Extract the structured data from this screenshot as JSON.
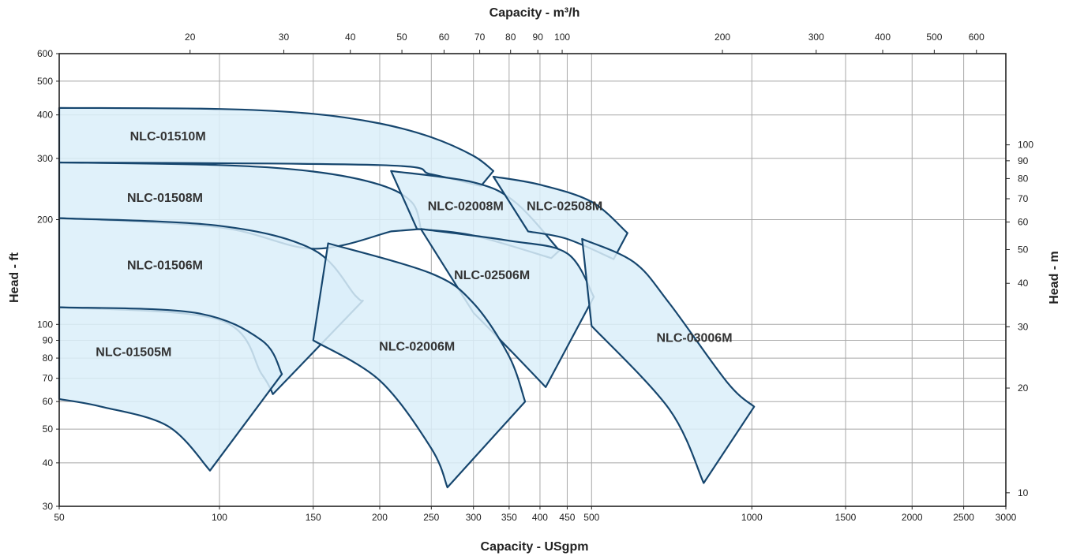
{
  "chart_data": {
    "type": "area",
    "x_scale": "log",
    "y_scale": "log",
    "grid": true,
    "xlabel_bottom": "Capacity - USgpm",
    "xlabel_top": "Capacity - m³/h",
    "ylabel_left": "Head - ft",
    "ylabel_right": "Head - m",
    "xlim": [
      50,
      3000
    ],
    "ylim": [
      30,
      600
    ],
    "x_ticks_bottom": [
      {
        "v": 50,
        "label": "50"
      },
      {
        "v": 100,
        "label": "100"
      },
      {
        "v": 150,
        "label": "150"
      },
      {
        "v": 200,
        "label": "200"
      },
      {
        "v": 250,
        "label": "250"
      },
      {
        "v": 300,
        "label": "300"
      },
      {
        "v": 350,
        "label": "350"
      },
      {
        "v": 400,
        "label": "400"
      },
      {
        "v": 450,
        "label": "450"
      },
      {
        "v": 500,
        "label": "500"
      },
      {
        "v": 1000,
        "label": "1000"
      },
      {
        "v": 1500,
        "label": "1500"
      },
      {
        "v": 2000,
        "label": "2000"
      },
      {
        "v": 2500,
        "label": "2500"
      },
      {
        "v": 3000,
        "label": "3000"
      }
    ],
    "x_ticks_top": [
      {
        "v": 20,
        "label": "20"
      },
      {
        "v": 30,
        "label": "30"
      },
      {
        "v": 40,
        "label": "40"
      },
      {
        "v": 50,
        "label": "50"
      },
      {
        "v": 60,
        "label": "60"
      },
      {
        "v": 70,
        "label": "70"
      },
      {
        "v": 80,
        "label": "80"
      },
      {
        "v": 90,
        "label": "90"
      },
      {
        "v": 100,
        "label": "100"
      },
      {
        "v": 200,
        "label": "200"
      },
      {
        "v": 300,
        "label": "300"
      },
      {
        "v": 400,
        "label": "400"
      },
      {
        "v": 500,
        "label": "500"
      },
      {
        "v": 600,
        "label": "600"
      }
    ],
    "y_ticks_left": [
      {
        "v": 30,
        "label": "30"
      },
      {
        "v": 40,
        "label": "40"
      },
      {
        "v": 50,
        "label": "50"
      },
      {
        "v": 60,
        "label": "60"
      },
      {
        "v": 70,
        "label": "70"
      },
      {
        "v": 80,
        "label": "80"
      },
      {
        "v": 90,
        "label": "90"
      },
      {
        "v": 100,
        "label": "100"
      },
      {
        "v": 200,
        "label": "200"
      },
      {
        "v": 300,
        "label": "300"
      },
      {
        "v": 400,
        "label": "400"
      },
      {
        "v": 500,
        "label": "500"
      },
      {
        "v": 600,
        "label": "600"
      }
    ],
    "y_ticks_right": [
      {
        "v": 10,
        "label": "10"
      },
      {
        "v": 20,
        "label": "20"
      },
      {
        "v": 30,
        "label": "30"
      },
      {
        "v": 40,
        "label": "40"
      },
      {
        "v": 50,
        "label": "50"
      },
      {
        "v": 60,
        "label": "60"
      },
      {
        "v": 70,
        "label": "70"
      },
      {
        "v": 80,
        "label": "80"
      },
      {
        "v": 90,
        "label": "90"
      },
      {
        "v": 100,
        "label": "100"
      }
    ],
    "colors": {
      "fill": "#daeef9",
      "stroke": "#16466e",
      "grid": "#a8a8a8",
      "frame": "#222222"
    },
    "regions": [
      {
        "name": "NLC-01510M",
        "label_at": [
          80,
          338
        ],
        "upper": [
          [
            50,
            419
          ],
          [
            100,
            416
          ],
          [
            150,
            403
          ],
          [
            200,
            378
          ],
          [
            250,
            345
          ],
          [
            300,
            305
          ],
          [
            327,
            276
          ]
        ],
        "lower": [
          [
            310,
            250
          ],
          [
            250,
            270
          ],
          [
            200,
            287
          ],
          [
            50,
            292
          ]
        ]
      },
      {
        "name": "NLC-01508M",
        "label_at": [
          79,
          225
        ],
        "upper": [
          [
            50,
            292
          ],
          [
            100,
            287
          ],
          [
            150,
            275
          ],
          [
            200,
            252
          ],
          [
            230,
            224
          ],
          [
            239,
            188
          ]
        ],
        "lower": [
          [
            210,
            185
          ],
          [
            150,
            165
          ],
          [
            100,
            190
          ],
          [
            50,
            202
          ]
        ]
      },
      {
        "name": "NLC-01506M",
        "label_at": [
          79,
          144
        ],
        "upper": [
          [
            50,
            202
          ],
          [
            100,
            192
          ],
          [
            150,
            164
          ],
          [
            180,
            121
          ],
          [
            186,
            117
          ]
        ],
        "lower": [
          [
            126,
            63
          ],
          [
            120,
            72
          ],
          [
            100,
            103
          ],
          [
            50,
            112
          ]
        ]
      },
      {
        "name": "NLC-01505M",
        "label_at": [
          69,
          81
        ],
        "upper": [
          [
            50,
            112
          ],
          [
            90,
            108
          ],
          [
            120,
            90
          ],
          [
            131,
            72
          ]
        ],
        "lower": [
          [
            96,
            38
          ],
          [
            80,
            51
          ],
          [
            60,
            58
          ],
          [
            50,
            61
          ]
        ]
      },
      {
        "name": "NLC-02008M",
        "label_at": [
          290,
          213
        ],
        "upper": [
          [
            210,
            276
          ],
          [
            300,
            256
          ],
          [
            360,
            224
          ],
          [
            435,
            163
          ]
        ],
        "lower": [
          [
            420,
            155
          ],
          [
            300,
            180
          ],
          [
            235,
            188
          ]
        ]
      },
      {
        "name": "NLC-02508M",
        "label_at": [
          445,
          213
        ],
        "upper": [
          [
            327,
            266
          ],
          [
            400,
            252
          ],
          [
            500,
            225
          ],
          [
            584,
            183
          ]
        ],
        "lower": [
          [
            550,
            154
          ],
          [
            450,
            176
          ],
          [
            380,
            185
          ]
        ]
      },
      {
        "name": "NLC-02506M",
        "label_at": [
          325,
          135
        ],
        "upper": [
          [
            239,
            188
          ],
          [
            350,
            174
          ],
          [
            450,
            160
          ],
          [
            505,
            120
          ]
        ],
        "lower": [
          [
            410,
            66
          ],
          [
            350,
            85
          ],
          [
            300,
            108
          ]
        ]
      },
      {
        "name": "NLC-02006M",
        "label_at": [
          235,
          84
        ],
        "upper": [
          [
            160,
            171
          ],
          [
            250,
            140
          ],
          [
            300,
            115
          ],
          [
            350,
            81
          ],
          [
            375,
            60
          ]
        ],
        "lower": [
          [
            268,
            34
          ],
          [
            250,
            44
          ],
          [
            200,
            69
          ],
          [
            150,
            90
          ]
        ]
      },
      {
        "name": "NLC-03006M",
        "label_at": [
          780,
          89
        ],
        "upper": [
          [
            480,
            176
          ],
          [
            600,
            151
          ],
          [
            700,
            115
          ],
          [
            900,
            68
          ],
          [
            1010,
            58
          ]
        ],
        "lower": [
          [
            812,
            35
          ],
          [
            700,
            57
          ],
          [
            500,
            99
          ]
        ]
      }
    ]
  }
}
